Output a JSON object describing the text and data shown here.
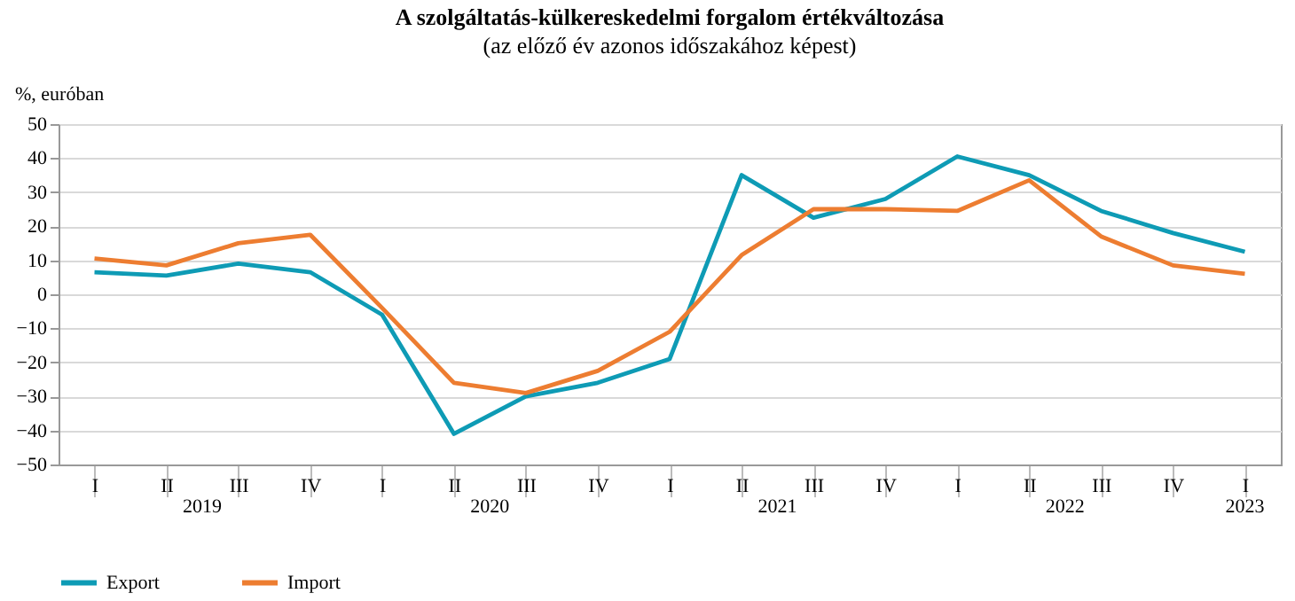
{
  "chart_data": {
    "type": "line",
    "title": "A szolgáltatás-külkereskedelmi forgalom értékváltozása",
    "subtitle": "(az előző év azonos időszakához képest)",
    "ylabel": "%, euróban",
    "categories": [
      "I",
      "II",
      "III",
      "IV",
      "I",
      "II",
      "III",
      "IV",
      "I",
      "II",
      "III",
      "IV",
      "I",
      "II",
      "III",
      "IV",
      "I"
    ],
    "annotations": [
      "2019",
      "2020",
      "2021",
      "2022",
      "2023"
    ],
    "series": [
      {
        "name": "Export",
        "color": "#0e9bb5",
        "values": [
          6.5,
          5.5,
          9,
          6.5,
          -6,
          -41,
          -30,
          -26,
          -19,
          35,
          22.5,
          28,
          40.5,
          35,
          24.5,
          18,
          12.5
        ]
      },
      {
        "name": "Import",
        "color": "#ed7d31",
        "values": [
          10.5,
          8.5,
          15,
          17.5,
          -4,
          -26,
          -29,
          -22.5,
          -11,
          11.5,
          25,
          25,
          24.5,
          33.5,
          17,
          8.5,
          6
        ]
      }
    ],
    "ylim": [
      -50,
      50
    ],
    "yticks": [
      -50,
      -40,
      -30,
      -20,
      -10,
      0,
      10,
      20,
      30,
      40,
      50
    ],
    "grid": "y",
    "legend": "bottom",
    "marker": "none",
    "line_style": "solid"
  }
}
